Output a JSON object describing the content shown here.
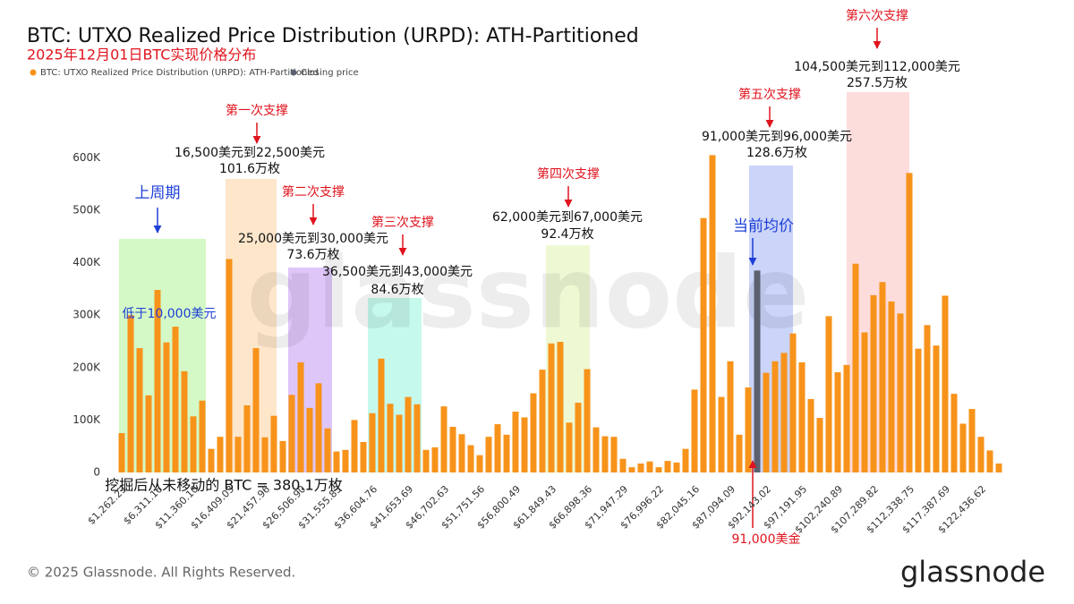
{
  "chart_data": {
    "type": "bar",
    "title": "BTC: UTXO Realized Price Distribution (URPD): ATH-Partitioned",
    "subtitle": "2025年12月01日BTC实现价格分布",
    "categories": [
      "$1,262.23",
      null,
      null,
      null,
      "$6,311.16",
      null,
      null,
      null,
      "$11,360.10",
      null,
      null,
      null,
      "$16,409.03",
      null,
      null,
      null,
      "$21,457.96",
      null,
      null,
      null,
      "$26,506.90",
      null,
      null,
      null,
      "$31,555.83",
      null,
      null,
      null,
      "$36,604.76",
      null,
      null,
      null,
      "$41,653.69",
      null,
      null,
      null,
      "$46,702.63",
      null,
      null,
      null,
      "$51,751.56",
      null,
      null,
      null,
      "$56,800.49",
      null,
      null,
      null,
      "$61,849.43",
      null,
      null,
      null,
      "$66,898.36",
      null,
      null,
      null,
      "$71,947.29",
      null,
      null,
      null,
      "$76,996.22",
      null,
      null,
      null,
      "$82,045.16",
      null,
      null,
      null,
      "$87,094.09",
      null,
      null,
      null,
      "$92,143.02",
      null,
      null,
      null,
      "$97,191.95",
      null,
      null,
      null,
      "$102,240.89",
      null,
      null,
      null,
      "$107,289.82",
      null,
      null,
      null,
      "$112,338.75",
      null,
      null,
      null,
      "$117,387.69",
      null,
      null,
      null,
      "$122,436.62",
      null,
      null
    ],
    "series": [
      {
        "name": "BTC: UTXO Realized Price Distribution (URPD): ATH-Partitioned",
        "color": "#f7931a",
        "values": [
          75000,
          300000,
          237000,
          147000,
          348000,
          248000,
          278000,
          193000,
          107000,
          137000,
          45000,
          68000,
          407000,
          68000,
          128000,
          237000,
          67000,
          108000,
          60000,
          148000,
          210000,
          123000,
          170000,
          84000,
          40000,
          43000,
          100000,
          58000,
          113000,
          217000,
          131000,
          110000,
          144000,
          130000,
          43000,
          48000,
          126000,
          87000,
          73000,
          52000,
          33000,
          68000,
          92000,
          72000,
          116000,
          105000,
          151000,
          196000,
          246000,
          249000,
          95000,
          133000,
          197000,
          86000,
          69000,
          68000,
          26000,
          10000,
          17000,
          21000,
          10000,
          22000,
          19000,
          45000,
          158000,
          485000,
          605000,
          144000,
          212000,
          72000,
          162000,
          null,
          190000,
          212000,
          228000,
          265000,
          210000,
          140000,
          104000,
          298000,
          191000,
          205000,
          398000,
          267000,
          338000,
          363000,
          326000,
          303000,
          571000,
          236000,
          281000,
          242000,
          337000,
          150000,
          93000,
          121000,
          68000,
          42000,
          17000
        ]
      },
      {
        "name": "Closing price",
        "color": "#5b6170",
        "values": [
          null,
          null,
          null,
          null,
          null,
          null,
          null,
          null,
          null,
          null,
          null,
          null,
          null,
          null,
          null,
          null,
          null,
          null,
          null,
          null,
          null,
          null,
          null,
          null,
          null,
          null,
          null,
          null,
          null,
          null,
          null,
          null,
          null,
          null,
          null,
          null,
          null,
          null,
          null,
          null,
          null,
          null,
          null,
          null,
          null,
          null,
          null,
          null,
          null,
          null,
          null,
          null,
          null,
          null,
          null,
          null,
          null,
          null,
          null,
          null,
          null,
          null,
          null,
          null,
          null,
          null,
          null,
          null,
          null,
          null,
          null,
          385000,
          null,
          null,
          null,
          null,
          null,
          null,
          null,
          null,
          null,
          null,
          null,
          null,
          null,
          null,
          null,
          null,
          null,
          null,
          null,
          null,
          null,
          null,
          null,
          null,
          null,
          null,
          null
        ]
      }
    ],
    "ylim": [
      0,
      650000
    ],
    "yticks": [
      {
        "value": 0,
        "label": "0"
      },
      {
        "value": 100000,
        "label": "100K"
      },
      {
        "value": 200000,
        "label": "200K"
      },
      {
        "value": 300000,
        "label": "300K"
      },
      {
        "value": 400000,
        "label": "400K"
      },
      {
        "value": 500000,
        "label": "500K"
      },
      {
        "value": 600000,
        "label": "600K"
      }
    ],
    "grid": false,
    "annotations": {
      "supports": [
        {
          "title": "第一次支撑",
          "range": "16,500美元到22,500美元",
          "amount": "101.6万枚"
        },
        {
          "title": "第二次支撑",
          "range": "25,000美元到30,000美元",
          "amount": "73.6万枚"
        },
        {
          "title": "第三次支撑",
          "range": "36,500美元到43,000美元",
          "amount": "84.6万枚"
        },
        {
          "title": "第四次支撑",
          "range": "62,000美元到67,000美元",
          "amount": "92.4万枚"
        },
        {
          "title": "第五次支撑",
          "range": "91,000美元到96,000美元",
          "amount": "128.6万枚"
        },
        {
          "title": "第六次支撑",
          "range": "104,500美元到112,000美元",
          "amount": "257.5万枚"
        }
      ],
      "last_cycle": "上周期",
      "below": "低于10,000美元",
      "current_avg": "当前均价",
      "price_marker": "91,000美金",
      "never_moved": "挖掘后从未移动的 BTC = 380.1万枚"
    }
  },
  "watermark": "glassnode",
  "footer": "© 2025 Glassnode. All Rights Reserved.",
  "logo": "glassnode"
}
